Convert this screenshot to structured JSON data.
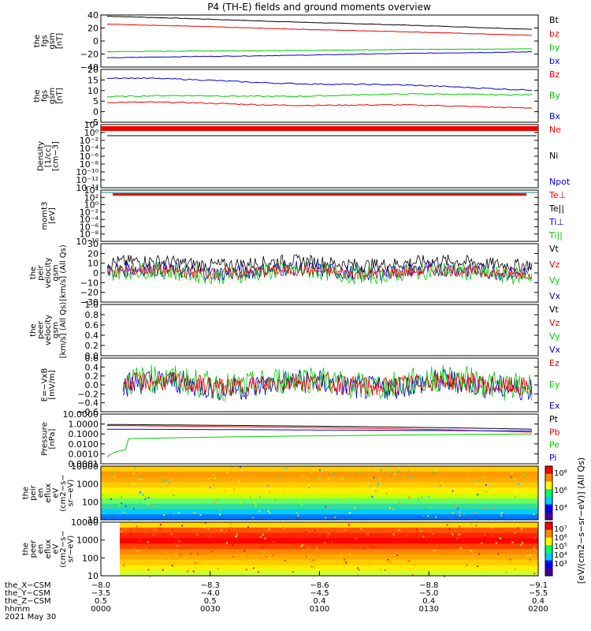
{
  "title": "P4 (TH-E) fields and ground moments overview",
  "colors": {
    "black": "#000000",
    "red": "#ee0000",
    "green": "#00cc00",
    "blue": "#0000dd"
  },
  "panels": [
    {
      "id": "fgs_gsm",
      "ylabel": [
        "the",
        "fgs",
        "gsm",
        "[nT]"
      ],
      "ticks": [
        "40",
        "20",
        "0",
        "−20",
        "−40"
      ],
      "legend": [
        {
          "text": "Bt",
          "color": "#000000"
        },
        {
          "text": "bz",
          "color": "#ee0000"
        },
        {
          "text": "by",
          "color": "#00cc00"
        },
        {
          "text": "bx",
          "color": "#0000dd"
        }
      ]
    },
    {
      "id": "fgs_gse",
      "ylabel": [
        "the",
        "fgs",
        "gsm",
        "[nT]"
      ],
      "ticks": [
        "20",
        "15",
        "10",
        "5",
        "0",
        "−5"
      ],
      "legend": [
        {
          "text": "Bz",
          "color": "#ee0000"
        },
        {
          "text": "By",
          "color": "#00cc00"
        },
        {
          "text": "Bx",
          "color": "#0000dd"
        }
      ]
    },
    {
      "id": "density",
      "ylabel": [
        "Density",
        "[1/cc]",
        "[cm−3]"
      ],
      "ticks": [
        "10²",
        "10⁰",
        "10⁻²",
        "10⁻⁴",
        "10⁻⁶",
        "10⁻⁸",
        "10⁻¹⁰",
        "10⁻¹²",
        "10⁻¹⁴"
      ],
      "legend": [
        {
          "text": "Ne",
          "color": "#ee0000"
        },
        {
          "text": "Ni",
          "color": "#000000"
        },
        {
          "text": "Npot",
          "color": "#0000dd"
        }
      ]
    },
    {
      "id": "temp",
      "ylabel": [
        "momt3",
        "[eV]"
      ],
      "ticks": [
        "10⁴",
        "10²",
        "10⁰",
        "10⁻²",
        "10⁻⁴",
        "10⁻⁶",
        "10⁻⁸",
        "10⁻¹⁰"
      ],
      "legend": [
        {
          "text": "Te⊥",
          "color": "#ee0000"
        },
        {
          "text": "Te||",
          "color": "#000000"
        },
        {
          "text": "Ti⊥",
          "color": "#0000dd"
        },
        {
          "text": "Ti||",
          "color": "#00cc00"
        }
      ]
    },
    {
      "id": "peir_vel",
      "ylabel": [
        "the",
        "peir",
        "velocity",
        "gsm",
        "[km/s] (All Qs)"
      ],
      "ticks": [
        "30",
        "20",
        "10",
        "0",
        "−10",
        "−20",
        "−30"
      ],
      "legend": [
        {
          "text": "Vt",
          "color": "#000000"
        },
        {
          "text": "Vz",
          "color": "#ee0000"
        },
        {
          "text": "Vy",
          "color": "#00cc00"
        },
        {
          "text": "Vx",
          "color": "#0000dd"
        }
      ]
    },
    {
      "id": "peer_vel",
      "ylabel": [
        "the",
        "peer",
        "velocity",
        "gsm",
        "[km/s] (All Qs)"
      ],
      "ticks": [
        "1.0",
        "0.8",
        "0.6",
        "0.4",
        "0.2",
        "0.0"
      ],
      "legend": [
        {
          "text": "Vt",
          "color": "#000000"
        },
        {
          "text": "Vz",
          "color": "#ee0000"
        },
        {
          "text": "Vy",
          "color": "#00cc00"
        },
        {
          "text": "Vx",
          "color": "#0000dd"
        }
      ]
    },
    {
      "id": "efield",
      "ylabel": [
        "E=−VxB",
        "[mV/m]"
      ],
      "ticks": [
        "0.6",
        "0.4",
        "0.2",
        "0.0",
        "−0.2",
        "−0.4",
        "−0.6"
      ],
      "legend": [
        {
          "text": "Ez",
          "color": "#ee0000"
        },
        {
          "text": "Ey",
          "color": "#00cc00"
        },
        {
          "text": "Ex",
          "color": "#0000dd"
        }
      ]
    },
    {
      "id": "pressure",
      "ylabel": [
        "Pressure",
        "[nPa]"
      ],
      "ticks": [
        "10.0000",
        "1.0000",
        "0.1000",
        "0.0100",
        "0.0010",
        "0.0001"
      ],
      "legend": [
        {
          "text": "Pt",
          "color": "#000000"
        },
        {
          "text": "Pb",
          "color": "#ee0000"
        },
        {
          "text": "Pe",
          "color": "#00cc00"
        },
        {
          "text": "Pi",
          "color": "#0000dd"
        }
      ]
    },
    {
      "id": "peir_spec",
      "ylabel": [
        "the",
        "peir",
        "en",
        "eflux",
        "eV",
        "(cm2−s−",
        "sr−eV)"
      ],
      "ticks": [
        "10000",
        "1000",
        "100",
        "10"
      ],
      "colorbar": {
        "ticks": [
          "10⁸",
          "10⁶",
          "10⁴"
        ]
      }
    },
    {
      "id": "peer_spec",
      "ylabel": [
        "the",
        "peer",
        "en",
        "eflux",
        "eV",
        "(cm2−s−",
        "sr−eV)"
      ],
      "ticks": [
        "10000",
        "1000",
        "100",
        "10"
      ],
      "colorbar": {
        "ticks": [
          "10⁷",
          "10⁶",
          "10⁵",
          "10⁴",
          "10³"
        ]
      }
    }
  ],
  "colorbar_label": "[eV/(cm2−s−sr−eV)] (All Qs)",
  "xaxis": {
    "row_labels": [
      "the_X−CSM",
      "the_Y−CSM",
      "the_Z−CSM",
      "hhmm",
      "2021 May 30"
    ],
    "columns": [
      {
        "vals": [
          "−8.0",
          "−3.5",
          "0.5",
          "0000"
        ]
      },
      {
        "vals": [
          "−8.3",
          "−4.0",
          "0.5",
          "0030"
        ]
      },
      {
        "vals": [
          "−8.6",
          "−4.5",
          "0.4",
          "0100"
        ]
      },
      {
        "vals": [
          "−8.8",
          "−5.0",
          "0.4",
          "0130"
        ]
      },
      {
        "vals": [
          "−9.1",
          "−5.5",
          "0.4",
          "0200"
        ]
      }
    ]
  },
  "chart_data": {
    "type": "line",
    "title": "P4 (TH-E) fields and ground moments overview",
    "x_range": [
      "0000",
      "0200"
    ],
    "series_panel1": [
      {
        "name": "Bt",
        "start": 43,
        "end": 22
      },
      {
        "name": "bz",
        "start": 30,
        "end": 12
      },
      {
        "name": "by",
        "start": -15,
        "end": -10
      },
      {
        "name": "bx",
        "start": -25,
        "end": -15
      }
    ],
    "series_panel2": [
      {
        "name": "Bz",
        "start": 2.5,
        "end": 0
      },
      {
        "name": "By",
        "start": 5.5,
        "end": 7
      },
      {
        "name": "Bx",
        "start": 15.5,
        "end": 9.5
      }
    ],
    "pressure": [
      {
        "name": "Pt",
        "start": 0.9,
        "end": 0.3
      },
      {
        "name": "Pb",
        "start": 0.7,
        "end": 0.15
      },
      {
        "name": "Pe",
        "start": 0.003,
        "end": 0.1
      },
      {
        "name": "Pi",
        "start": 0.3,
        "end": 0.2
      }
    ],
    "ylim_panel1": [
      -40,
      45
    ],
    "ylim_panel2": [
      -8,
      20
    ],
    "ylim_efield": [
      -0.6,
      0.6
    ]
  }
}
